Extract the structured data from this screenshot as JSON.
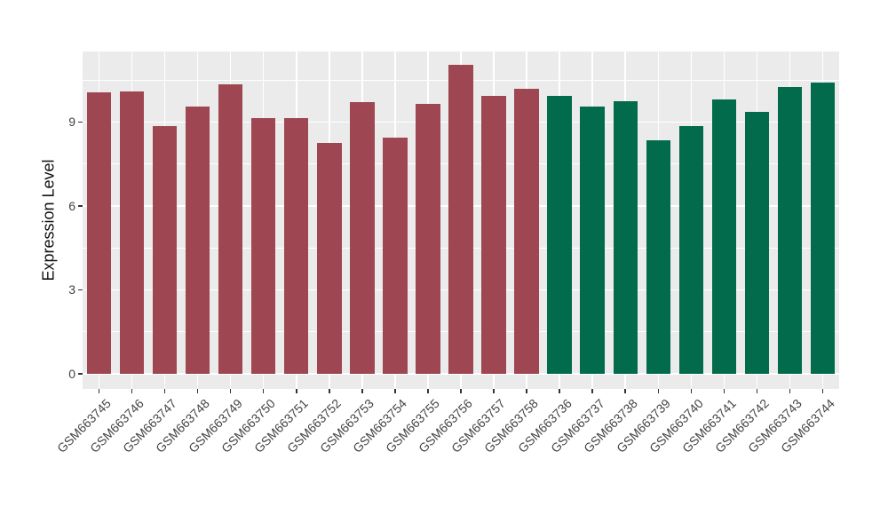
{
  "chart_data": {
    "type": "bar",
    "title": "",
    "xlabel": "",
    "ylabel": "Expression Level",
    "categories": [
      "GSM663745",
      "GSM663746",
      "GSM663747",
      "GSM663748",
      "GSM663749",
      "GSM663750",
      "GSM663751",
      "GSM663752",
      "GSM663753",
      "GSM663754",
      "GSM663755",
      "GSM663756",
      "GSM663757",
      "GSM663758",
      "GSM663736",
      "GSM663737",
      "GSM663738",
      "GSM663739",
      "GSM663740",
      "GSM663741",
      "GSM663742",
      "GSM663743",
      "GSM663744"
    ],
    "values": [
      10.05,
      10.1,
      8.85,
      9.55,
      10.35,
      9.15,
      9.15,
      8.25,
      9.7,
      8.45,
      9.65,
      11.05,
      9.95,
      10.2,
      9.95,
      9.55,
      9.75,
      8.35,
      8.85,
      9.8,
      9.35,
      10.25,
      10.4
    ],
    "bar_colors": [
      "#9E4752",
      "#9E4752",
      "#9E4752",
      "#9E4752",
      "#9E4752",
      "#9E4752",
      "#9E4752",
      "#9E4752",
      "#9E4752",
      "#9E4752",
      "#9E4752",
      "#9E4752",
      "#9E4752",
      "#9E4752",
      "#016B4C",
      "#016B4C",
      "#016B4C",
      "#016B4C",
      "#016B4C",
      "#016B4C",
      "#016B4C",
      "#016B4C",
      "#016B4C"
    ],
    "groups": [
      {
        "name": "group-red",
        "color": "#9E4752",
        "categories": [
          "GSM663745",
          "GSM663746",
          "GSM663747",
          "GSM663748",
          "GSM663749",
          "GSM663750",
          "GSM663751",
          "GSM663752",
          "GSM663753",
          "GSM663754",
          "GSM663755",
          "GSM663756",
          "GSM663757",
          "GSM663758"
        ]
      },
      {
        "name": "group-green",
        "color": "#016B4C",
        "categories": [
          "GSM663736",
          "GSM663737",
          "GSM663738",
          "GSM663739",
          "GSM663740",
          "GSM663741",
          "GSM663742",
          "GSM663743",
          "GSM663744"
        ]
      }
    ],
    "yticks": [
      0,
      3,
      6,
      9
    ],
    "minor_yticks": [
      1.5,
      4.5,
      7.5,
      10.5
    ],
    "ylim": [
      -0.55,
      11.6
    ],
    "grid": true,
    "legend_position": "none",
    "x_tick_rotation_deg": 45,
    "panel_bg": "#EBEBEB",
    "grid_color": "#FFFFFF",
    "tick_label_color": "#444444",
    "axis_title_color": "#111111"
  }
}
